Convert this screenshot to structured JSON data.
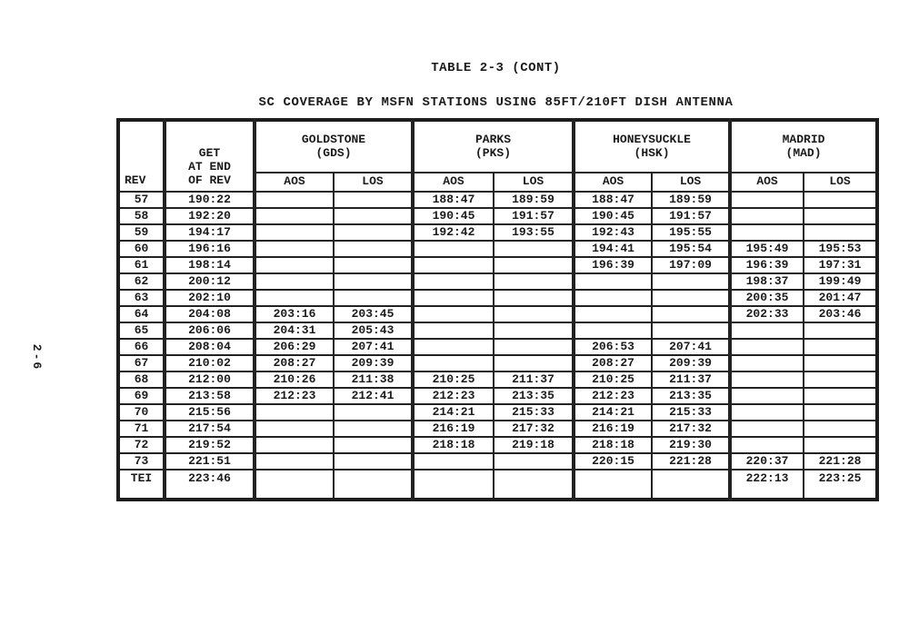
{
  "page": {
    "number": "2-6",
    "title": "TABLE 2-3 (CONT)",
    "subtitle": "SC COVERAGE BY MSFN STATIONS USING 85FT/210FT DISH ANTENNA"
  },
  "table": {
    "rev_header": "REV",
    "get_header_lines": [
      "GET",
      "AT END",
      "OF REV"
    ],
    "stations": [
      {
        "name": "GOLDSTONE",
        "abbr": "(GDS)"
      },
      {
        "name": "PARKS",
        "abbr": "(PKS)"
      },
      {
        "name": "HONEYSUCKLE",
        "abbr": "(HSK)"
      },
      {
        "name": "MADRID",
        "abbr": "(MAD)"
      }
    ],
    "sub_headers": [
      "AOS",
      "LOS"
    ],
    "rows": [
      {
        "rev": "57",
        "get": "190:22",
        "gds_aos": "",
        "gds_los": "",
        "pks_aos": "188:47",
        "pks_los": "189:59",
        "hsk_aos": "188:47",
        "hsk_los": "189:59",
        "mad_aos": "",
        "mad_los": ""
      },
      {
        "rev": "58",
        "get": "192:20",
        "gds_aos": "",
        "gds_los": "",
        "pks_aos": "190:45",
        "pks_los": "191:57",
        "hsk_aos": "190:45",
        "hsk_los": "191:57",
        "mad_aos": "",
        "mad_los": ""
      },
      {
        "rev": "59",
        "get": "194:17",
        "gds_aos": "",
        "gds_los": "",
        "pks_aos": "192:42",
        "pks_los": "193:55",
        "hsk_aos": "192:43",
        "hsk_los": "195:55",
        "mad_aos": "",
        "mad_los": ""
      },
      {
        "rev": "60",
        "get": "196:16",
        "gds_aos": "",
        "gds_los": "",
        "pks_aos": "",
        "pks_los": "",
        "hsk_aos": "194:41",
        "hsk_los": "195:54",
        "mad_aos": "195:49",
        "mad_los": "195:53"
      },
      {
        "rev": "61",
        "get": "198:14",
        "gds_aos": "",
        "gds_los": "",
        "pks_aos": "",
        "pks_los": "",
        "hsk_aos": "196:39",
        "hsk_los": "197:09",
        "mad_aos": "196:39",
        "mad_los": "197:31"
      },
      {
        "rev": "62",
        "get": "200:12",
        "gds_aos": "",
        "gds_los": "",
        "pks_aos": "",
        "pks_los": "",
        "hsk_aos": "",
        "hsk_los": "",
        "mad_aos": "198:37",
        "mad_los": "199:49"
      },
      {
        "rev": "63",
        "get": "202:10",
        "gds_aos": "",
        "gds_los": "",
        "pks_aos": "",
        "pks_los": "",
        "hsk_aos": "",
        "hsk_los": "",
        "mad_aos": "200:35",
        "mad_los": "201:47"
      },
      {
        "rev": "64",
        "get": "204:08",
        "gds_aos": "203:16",
        "gds_los": "203:45",
        "pks_aos": "",
        "pks_los": "",
        "hsk_aos": "",
        "hsk_los": "",
        "mad_aos": "202:33",
        "mad_los": "203:46"
      },
      {
        "rev": "65",
        "get": "206:06",
        "gds_aos": "204:31",
        "gds_los": "205:43",
        "pks_aos": "",
        "pks_los": "",
        "hsk_aos": "",
        "hsk_los": "",
        "mad_aos": "",
        "mad_los": ""
      },
      {
        "rev": "66",
        "get": "208:04",
        "gds_aos": "206:29",
        "gds_los": "207:41",
        "pks_aos": "",
        "pks_los": "",
        "hsk_aos": "206:53",
        "hsk_los": "207:41",
        "mad_aos": "",
        "mad_los": ""
      },
      {
        "rev": "67",
        "get": "210:02",
        "gds_aos": "208:27",
        "gds_los": "209:39",
        "pks_aos": "",
        "pks_los": "",
        "hsk_aos": "208:27",
        "hsk_los": "209:39",
        "mad_aos": "",
        "mad_los": ""
      },
      {
        "rev": "68",
        "get": "212:00",
        "gds_aos": "210:26",
        "gds_los": "211:38",
        "pks_aos": "210:25",
        "pks_los": "211:37",
        "hsk_aos": "210:25",
        "hsk_los": "211:37",
        "mad_aos": "",
        "mad_los": ""
      },
      {
        "rev": "69",
        "get": "213:58",
        "gds_aos": "212:23",
        "gds_los": "212:41",
        "pks_aos": "212:23",
        "pks_los": "213:35",
        "hsk_aos": "212:23",
        "hsk_los": "213:35",
        "mad_aos": "",
        "mad_los": ""
      },
      {
        "rev": "70",
        "get": "215:56",
        "gds_aos": "",
        "gds_los": "",
        "pks_aos": "214:21",
        "pks_los": "215:33",
        "hsk_aos": "214:21",
        "hsk_los": "215:33",
        "mad_aos": "",
        "mad_los": ""
      },
      {
        "rev": "71",
        "get": "217:54",
        "gds_aos": "",
        "gds_los": "",
        "pks_aos": "216:19",
        "pks_los": "217:32",
        "hsk_aos": "216:19",
        "hsk_los": "217:32",
        "mad_aos": "",
        "mad_los": ""
      },
      {
        "rev": "72",
        "get": "219:52",
        "gds_aos": "",
        "gds_los": "",
        "pks_aos": "218:18",
        "pks_los": "219:18",
        "hsk_aos": "218:18",
        "hsk_los": "219:30",
        "mad_aos": "",
        "mad_los": ""
      },
      {
        "rev": "73",
        "get": "221:51",
        "gds_aos": "",
        "gds_los": "",
        "pks_aos": "",
        "pks_los": "",
        "hsk_aos": "220:15",
        "hsk_los": "221:28",
        "mad_aos": "220:37",
        "mad_los": "221:28"
      },
      {
        "rev": "TEI",
        "get": "223:46",
        "gds_aos": "",
        "gds_los": "",
        "pks_aos": "",
        "pks_los": "",
        "hsk_aos": "",
        "hsk_los": "",
        "mad_aos": "222:13",
        "mad_los": "223:25"
      }
    ]
  }
}
